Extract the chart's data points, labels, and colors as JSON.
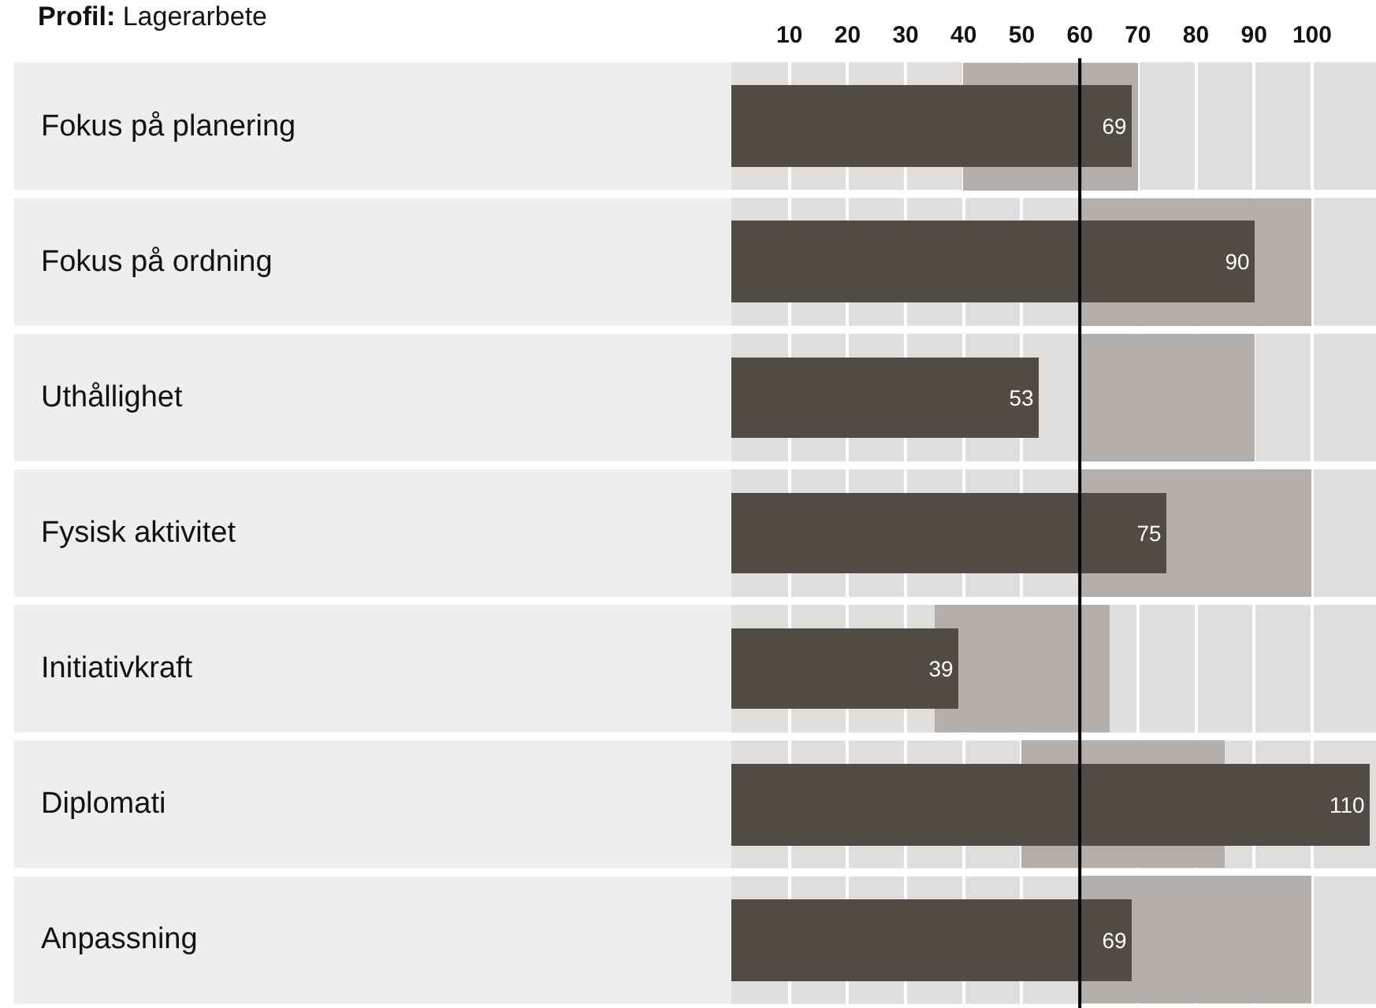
{
  "chart_data": {
    "type": "bar",
    "orientation": "horizontal",
    "title": "Profil: Lagerarbete",
    "categories": [
      "Fokus på planering",
      "Fokus på ordning",
      "Uthållighet",
      "Fysisk aktivitet",
      "Initiativkraft",
      "Diplomati",
      "Anpassning"
    ],
    "series": [
      {
        "axis": "x2",
        "color": "#b2aeab",
        "base": [
          40,
          60,
          60,
          60,
          35,
          50,
          60
        ],
        "values": [
          30,
          40,
          30,
          40,
          30,
          35,
          40
        ]
      },
      {
        "axis": "x2",
        "color": "#504b45",
        "values": [
          69,
          90,
          53,
          75,
          39,
          110,
          69
        ],
        "value_labels": [
          "69",
          "90",
          "53",
          "75",
          "39",
          "110",
          "69"
        ]
      }
    ],
    "x2lim": [
      0,
      111
    ],
    "x2ticks": [
      10,
      20,
      30,
      40,
      50,
      60,
      70,
      80,
      90,
      100
    ],
    "ref_lines": [
      {
        "axis": "x2",
        "value": 60,
        "color": "#000000"
      }
    ],
    "grid": "x2"
  }
}
